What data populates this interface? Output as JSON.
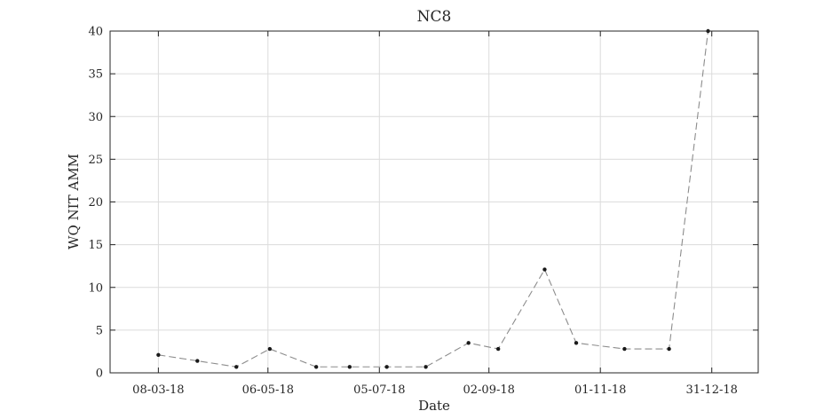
{
  "chart_data": {
    "type": "line",
    "title": "NC8",
    "xlabel": "Date",
    "ylabel": "WQ NIT AMM",
    "x_tick_labels": [
      "08-03-18",
      "06-05-18",
      "05-07-18",
      "02-09-18",
      "01-11-18",
      "31-12-18"
    ],
    "x_ticks": [
      "2018-03-08",
      "2018-05-06",
      "2018-07-05",
      "2018-09-02",
      "2018-11-01",
      "2018-12-31"
    ],
    "xlim": [
      "2018-02-10",
      "2019-01-25"
    ],
    "ylim": [
      0,
      40
    ],
    "y_ticks": [
      0,
      5,
      10,
      15,
      20,
      25,
      30,
      35,
      40
    ],
    "y_tick_labels": [
      "0",
      "5",
      "10",
      "15",
      "20",
      "25",
      "30",
      "35",
      "40"
    ],
    "grid": true,
    "series": [
      {
        "line_style": "dashed",
        "line_color": "#8c8c8c",
        "marker": "point",
        "marker_color": "#1a1a1a",
        "x": [
          "2018-03-08",
          "2018-03-29",
          "2018-04-19",
          "2018-05-07",
          "2018-06-01",
          "2018-06-19",
          "2018-07-09",
          "2018-07-30",
          "2018-08-22",
          "2018-09-07",
          "2018-10-02",
          "2018-10-19",
          "2018-11-14",
          "2018-12-08",
          "2018-12-29"
        ],
        "y": [
          2.1,
          1.4,
          0.7,
          2.8,
          0.7,
          0.7,
          0.7,
          0.7,
          3.5,
          2.8,
          12.1,
          3.5,
          2.8,
          2.8,
          40
        ]
      }
    ]
  }
}
